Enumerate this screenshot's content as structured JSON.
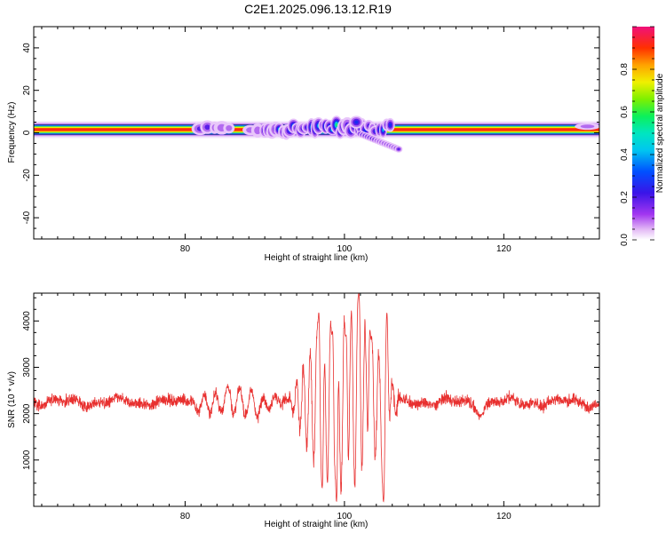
{
  "title": "C2E1.2025.096.13.12.R19",
  "chart_data": [
    {
      "type": "heatmap",
      "xlabel": "Height of straight line (km)",
      "ylabel": "Frequency (Hz)",
      "xlim": [
        61,
        132
      ],
      "ylim": [
        -50,
        50
      ],
      "x_ticks": [
        80,
        100,
        120
      ],
      "y_ticks": [
        -40,
        -20,
        0,
        20,
        40
      ],
      "colorbar": {
        "label": "Normalized spectral amplitude",
        "range": [
          0,
          1
        ],
        "ticks": [
          0.0,
          0.2,
          0.4,
          0.6,
          0.8
        ]
      },
      "band": {
        "center_hz": 1.5,
        "core_halfwidth_hz": 1.2,
        "outer_halfwidth_hz": 2.5,
        "disturbed_region_km": [
          81,
          107
        ],
        "strong_disturbance_km": [
          90,
          106
        ],
        "downward_tail": {
          "x_km": [
            102,
            107
          ],
          "min_freq_hz": -8
        },
        "upward_blob": {
          "x_km": 101.5,
          "max_freq_hz": 8
        }
      }
    },
    {
      "type": "line",
      "xlabel": "Height of straight line (km)",
      "ylabel": "SNR (10 * v/v)",
      "xlim": [
        61,
        132
      ],
      "ylim": [
        0,
        4600
      ],
      "x_ticks": [
        80,
        100,
        120
      ],
      "y_ticks": [
        1000,
        2000,
        3000,
        4000
      ],
      "series": [
        {
          "color": "#e8302f",
          "baseline": 2250,
          "noise_amplitude": 160,
          "oscillation_region_km": [
            80,
            93
          ],
          "oscillation_amplitude": 300,
          "strong_oscillation_km": [
            93,
            107
          ],
          "peak_values": [
            {
              "x": 96.8,
              "y": 4300
            },
            {
              "x": 98.5,
              "y": 3800
            },
            {
              "x": 100.2,
              "y": 3700
            },
            {
              "x": 101.8,
              "y": 4600
            },
            {
              "x": 103.2,
              "y": 3800
            },
            {
              "x": 105.3,
              "y": 4300
            }
          ],
          "trough_values": [
            {
              "x": 97.2,
              "y": 400
            },
            {
              "x": 99.0,
              "y": 100
            },
            {
              "x": 104.9,
              "y": 100
            }
          ],
          "dip": {
            "x": 117.0,
            "y": 1800
          }
        }
      ]
    }
  ]
}
